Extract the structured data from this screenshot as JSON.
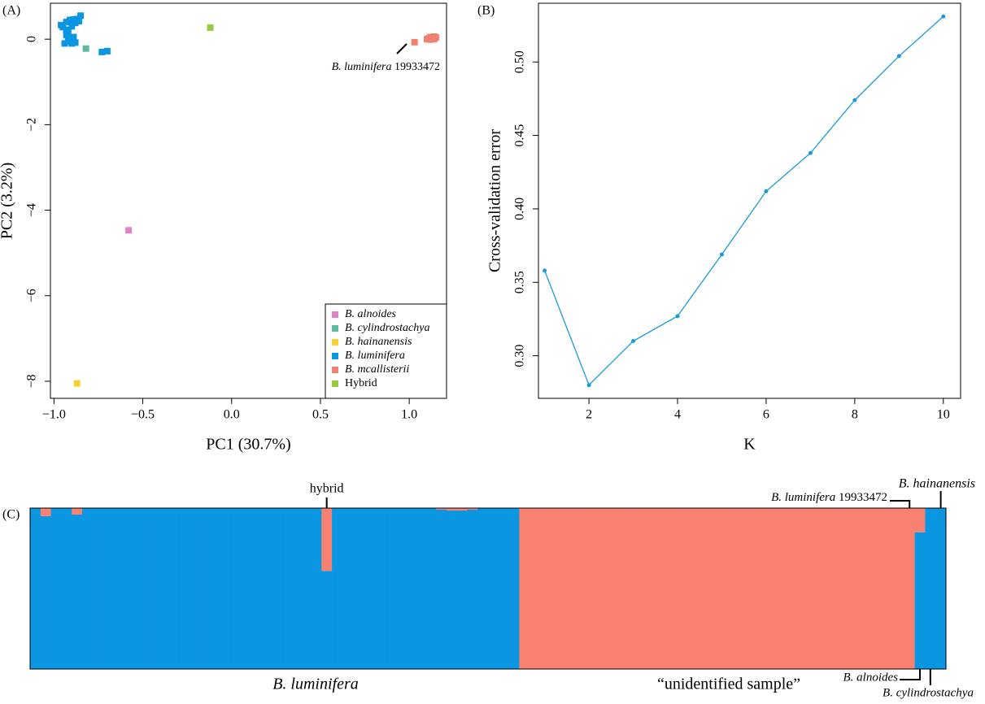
{
  "chart_data": [
    {
      "type": "scatter",
      "label": "(A)",
      "xlabel": "PC1 (30.7%)",
      "ylabel": "PC2 (3.2%)",
      "xlim": [
        -1.02,
        1.21
      ],
      "ylim": [
        -8.4,
        0.84
      ],
      "xticks": [
        {
          "value": -1.0,
          "label": "−1.0"
        },
        {
          "value": -0.5,
          "label": "−0.5"
        },
        {
          "value": 0,
          "label": "0.0"
        },
        0.5,
        {
          "value": 1.0,
          "label": "1.0"
        }
      ],
      "yticks": [
        0,
        {
          "value": -2,
          "label": "−2"
        },
        {
          "value": -4,
          "label": "−4"
        },
        {
          "value": -6,
          "label": "−6"
        },
        {
          "value": -8,
          "label": "−8"
        }
      ],
      "legend": "bottomright",
      "annotation": {
        "species": "B. luminifera",
        "sample": "19933472"
      },
      "series": [
        {
          "name": "B. alnoides",
          "color": "#df83c8",
          "x": [
            -0.58
          ],
          "values": [
            -4.47
          ]
        },
        {
          "name": "B. cylindrostachya",
          "color": "#5fb9a0",
          "x": [
            -0.82
          ],
          "values": [
            -0.22
          ]
        },
        {
          "name": "B. hainanensis",
          "color": "#f5d033",
          "x": [
            -0.87
          ],
          "values": [
            -8.05
          ]
        },
        {
          "name": "B. luminifera",
          "color": "#0a96e0",
          "x": [
            -0.96,
            -0.95,
            -0.93,
            -0.92,
            -0.91,
            -0.9,
            -0.89,
            -0.88,
            -0.87,
            -0.86,
            -0.85,
            -0.93,
            -0.92,
            -0.9,
            -0.94,
            -0.91,
            -0.89,
            -0.93,
            -0.88,
            -0.73,
            -0.7
          ],
          "values": [
            0.33,
            0.28,
            0.4,
            0.15,
            0.45,
            0.3,
            0.46,
            0.38,
            0.47,
            0.42,
            0.55,
            0.1,
            -0.05,
            -0.1,
            -0.1,
            0.0,
            0.05,
            0.22,
            -0.08,
            -0.3,
            -0.28
          ]
        },
        {
          "name": "B. mcallisterii",
          "color": "#f08070",
          "x": [
            1.03,
            1.1,
            1.11,
            1.12,
            1.13,
            1.14,
            1.15,
            1.12,
            1.14
          ],
          "values": [
            -0.07,
            0.0,
            0.02,
            0.05,
            0.03,
            0.0,
            0.04,
            -0.01,
            0.06
          ]
        },
        {
          "name": "Hybrid",
          "color": "#99cc44",
          "x": [
            -0.12
          ],
          "values": [
            0.27
          ]
        }
      ]
    },
    {
      "type": "line",
      "label": "(B)",
      "xlabel": "K",
      "ylabel": "Cross-validation error",
      "xlim": [
        0.86,
        10.39
      ],
      "ylim": [
        0.271,
        0.54
      ],
      "xticks": [
        2,
        4,
        6,
        8,
        10
      ],
      "yticks": [
        {
          "value": 0.3,
          "label": "0.30"
        },
        0.35,
        {
          "value": 0.4,
          "label": "0.40"
        },
        0.45,
        {
          "value": 0.5,
          "label": "0.50"
        }
      ],
      "color": "#1a9ad6",
      "x": [
        1,
        2,
        3,
        4,
        5,
        6,
        7,
        8,
        9,
        10
      ],
      "values": [
        0.358,
        0.28,
        0.31,
        0.327,
        0.369,
        0.412,
        0.438,
        0.474,
        0.504,
        0.531
      ]
    },
    {
      "type": "stacked_bar",
      "label": "(C)",
      "ylim": [
        0,
        1
      ],
      "annotations": [
        "hybrid",
        "B. luminifera",
        "“unidentified sample”",
        "B. hainanensis",
        "B. alnoides",
        "B. cylindrostachya"
      ],
      "annotation": {
        "species": "B. luminifera",
        "sample": "19933472"
      },
      "series": [
        {
          "color": "#0a96e0",
          "values": [
            1,
            0.95,
            1,
            1,
            0.96,
            1,
            1,
            1,
            1,
            1,
            1,
            1,
            1,
            1,
            1,
            1,
            1,
            1,
            1,
            1,
            1,
            1,
            1,
            1,
            1,
            1,
            1,
            1,
            0.61,
            1,
            1,
            1,
            1,
            1,
            1,
            1,
            1,
            1,
            1,
            0.99,
            0.985,
            0.985,
            0.99,
            1,
            1,
            1,
            1,
            0,
            0,
            0,
            0,
            0,
            0,
            0,
            0,
            0,
            0,
            0,
            0,
            0,
            0,
            0,
            0,
            0,
            0,
            0,
            0,
            0,
            0,
            0,
            0,
            0,
            0,
            0,
            0,
            0,
            0,
            0,
            0,
            0,
            0,
            0,
            0,
            0,
            0,
            0.85,
            1,
            1
          ]
        },
        {
          "color": "#f88172",
          "values": [
            0,
            0.05,
            0,
            0,
            0.04,
            0,
            0,
            0,
            0,
            0,
            0,
            0,
            0,
            0,
            0,
            0,
            0,
            0,
            0,
            0,
            0,
            0,
            0,
            0,
            0,
            0,
            0,
            0,
            0.39,
            0,
            0,
            0,
            0,
            0,
            0,
            0,
            0,
            0,
            0,
            0.01,
            0.015,
            0.015,
            0.01,
            0,
            0,
            0,
            0,
            1,
            1,
            1,
            1,
            1,
            1,
            1,
            1,
            1,
            1,
            1,
            1,
            1,
            1,
            1,
            1,
            1,
            1,
            1,
            1,
            1,
            1,
            1,
            1,
            1,
            1,
            1,
            1,
            1,
            1,
            1,
            1,
            1,
            1,
            1,
            1,
            1,
            1,
            0.15,
            0,
            0
          ]
        }
      ]
    }
  ]
}
